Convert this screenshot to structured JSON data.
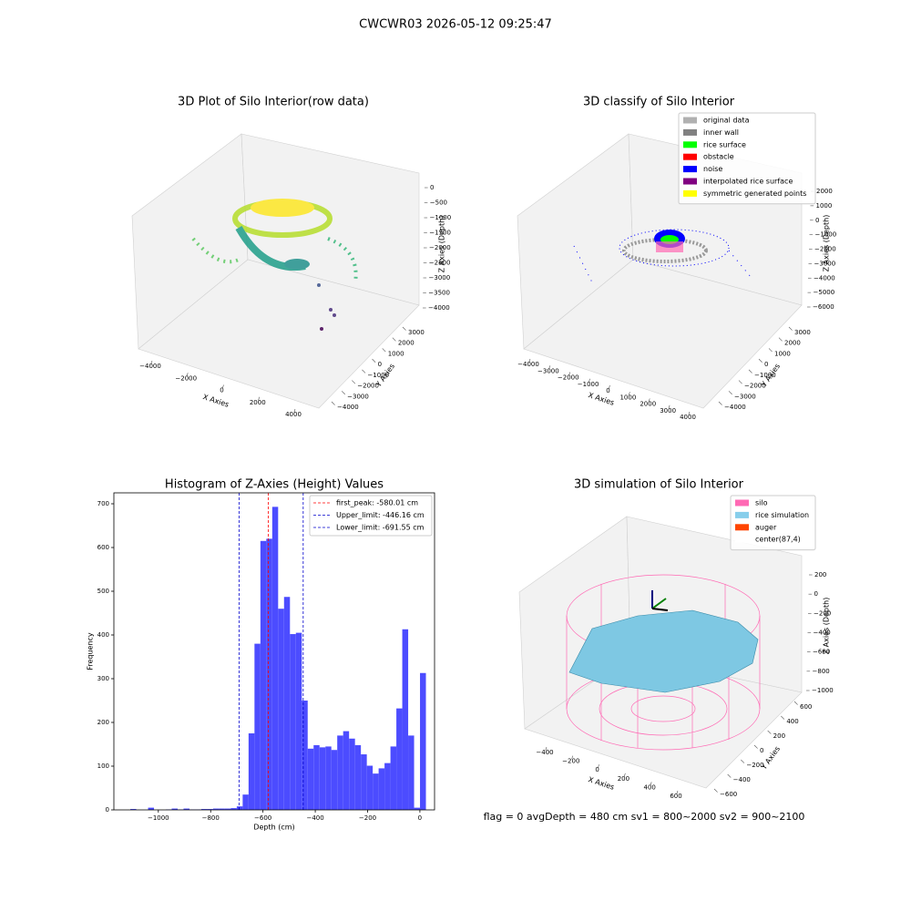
{
  "title": "CWCWR03 2026-05-12 09:25:47",
  "footer": "flag = 0     avgDepth = 480 cm  sv1 = 800~2000  sv2 = 900~2100",
  "chart_data": [
    {
      "type": "scatter3d",
      "title": "3D Plot of Silo Interior(row data)",
      "xlabel": "X Axies",
      "ylabel": "Y Axies",
      "zlabel": "Z Axies (Depth)",
      "xlim": [
        -4000,
        4000
      ],
      "xticks": [
        {
          "value": -4000,
          "label": "−4000"
        },
        {
          "value": -2000,
          "label": "−2000"
        },
        0,
        2000,
        4000
      ],
      "ylim": [
        -4000,
        3000
      ],
      "yticks": [
        {
          "value": -4000,
          "label": "−4000"
        },
        {
          "value": -3000,
          "label": "−3000"
        },
        {
          "value": -2000,
          "label": "−2000"
        },
        {
          "value": -1000,
          "label": "−1000"
        },
        0,
        1000,
        2000,
        3000
      ],
      "zlim": [
        0,
        -4000
      ],
      "zticks": [
        0,
        {
          "value": -500,
          "label": "−500"
        },
        {
          "value": -1000,
          "label": "−1000"
        },
        {
          "value": -1500,
          "label": "−1500"
        },
        {
          "value": -2000,
          "label": "−2000"
        },
        {
          "value": -2500,
          "label": "−2500"
        },
        {
          "value": -3000,
          "label": "−3000"
        },
        {
          "value": -3500,
          "label": "−3500"
        },
        {
          "value": -4000,
          "label": "−4000"
        }
      ]
    },
    {
      "type": "scatter3d",
      "title": "3D classify of Silo Interior",
      "xlabel": "X Axies",
      "ylabel": "Y Axies",
      "zlabel": "Z Axies (Depth)",
      "xlim": [
        -4000,
        4000
      ],
      "xticks": [
        {
          "value": -4000,
          "label": "−4000"
        },
        {
          "value": -3000,
          "label": "−3000"
        },
        {
          "value": -2000,
          "label": "−2000"
        },
        {
          "value": -1000,
          "label": "−1000"
        },
        0,
        1000,
        2000,
        3000,
        4000
      ],
      "ylim": [
        -4000,
        3000
      ],
      "yticks": [
        {
          "value": -4000,
          "label": "−4000"
        },
        {
          "value": -3000,
          "label": "−3000"
        },
        {
          "value": -2000,
          "label": "−2000"
        },
        {
          "value": -1000,
          "label": "−1000"
        },
        0,
        1000,
        2000,
        3000
      ],
      "zlim": [
        2000,
        -6000
      ],
      "zticks": [
        2000,
        1000,
        0,
        {
          "value": -1000,
          "label": "−1000"
        },
        {
          "value": -2000,
          "label": "−2000"
        },
        {
          "value": -3000,
          "label": "−3000"
        },
        {
          "value": -4000,
          "label": "−4000"
        },
        {
          "value": -5000,
          "label": "−5000"
        },
        {
          "value": -6000,
          "label": "−6000"
        }
      ],
      "legend": "upper right",
      "series": [
        {
          "name": "original data",
          "color": "#b0b0b0"
        },
        {
          "name": "inner wall",
          "color": "#808080"
        },
        {
          "name": "rice surface",
          "color": "#00ff00"
        },
        {
          "name": "obstacle",
          "color": "#ff0000"
        },
        {
          "name": "noise",
          "color": "#0000ff"
        },
        {
          "name": "interpolated rice surface",
          "color": "#800080"
        },
        {
          "name": "symmetric generated points",
          "color": "#ffff00"
        }
      ]
    },
    {
      "type": "histogram",
      "title": "Histogram of Z-Axies (Height) Values",
      "xlabel": "Depth (cm)",
      "ylabel": "Frequency",
      "color": "#4c4cff",
      "bins": [
        -1107,
        -1084.4,
        -1061.8,
        -1039.2,
        -1016.6,
        -994,
        -971.4,
        -948.8,
        -926.2,
        -903.6,
        -881,
        -858.4,
        -835.8,
        -813.2,
        -790.6,
        -768,
        -745.4,
        -722.8,
        -700.2,
        -677.6,
        -655,
        -632.4,
        -609.8,
        -587.2,
        -564.6,
        -542,
        -519.4,
        -496.8,
        -474.2,
        -451.6,
        -429,
        -406.4,
        -383.8,
        -361.2,
        -338.6,
        -316,
        -293.4,
        -270.8,
        -248.2,
        -225.6,
        -203,
        -180.4,
        -157.8,
        -135.2,
        -112.6,
        -90,
        -67.4,
        -44.8,
        -22.2,
        0.4,
        23
      ],
      "counts": [
        2,
        0,
        0,
        5,
        0,
        0,
        1,
        3,
        1,
        3,
        1,
        1,
        2,
        2,
        3,
        3,
        3,
        4,
        8,
        35,
        175,
        380,
        615,
        620,
        693,
        460,
        487,
        402,
        405,
        250,
        140,
        148,
        143,
        145,
        137,
        170,
        180,
        163,
        148,
        127,
        101,
        83,
        95,
        107,
        145,
        232,
        413,
        170,
        5,
        313
      ],
      "xlim": [
        -1170,
        56
      ],
      "xticks": [
        {
          "value": -1000,
          "label": "−1000"
        },
        {
          "value": -800,
          "label": "−800"
        },
        {
          "value": -600,
          "label": "−600"
        },
        {
          "value": -400,
          "label": "−400"
        },
        {
          "value": -200,
          "label": "−200"
        },
        0
      ],
      "ylim": [
        0,
        725
      ],
      "yticks": [
        0,
        100,
        200,
        300,
        400,
        500,
        600,
        700
      ],
      "legend": "upper right",
      "vlines": [
        {
          "name": "first_peak: -580.01 cm",
          "value": -580.01,
          "color": "#ff0000"
        },
        {
          "name": "Upper_limit: -446.16 cm",
          "value": -446.16,
          "color": "#0000cc"
        },
        {
          "name": "Lower_limit: -691.55 cm",
          "value": -691.55,
          "color": "#0000cc"
        }
      ]
    },
    {
      "type": "surface3d",
      "title": "3D simulation of Silo Interior",
      "xlabel": "X Axies",
      "ylabel": "Y Axies",
      "zlabel": "Z Axies (Depth)",
      "xlim": [
        -400,
        600
      ],
      "xticks": [
        {
          "value": -400,
          "label": "−400"
        },
        {
          "value": -200,
          "label": "−200"
        },
        0,
        200,
        400,
        600
      ],
      "ylim": [
        -600,
        600
      ],
      "yticks": [
        {
          "value": -600,
          "label": "−600"
        },
        {
          "value": -400,
          "label": "−400"
        },
        {
          "value": -200,
          "label": "−200"
        },
        0,
        200,
        400,
        600
      ],
      "zlim": [
        200,
        -1000
      ],
      "zticks": [
        200,
        0,
        {
          "value": -200,
          "label": "−200"
        },
        {
          "value": -400,
          "label": "−400"
        },
        {
          "value": -600,
          "label": "−600"
        },
        {
          "value": -800,
          "label": "−800"
        },
        {
          "value": -1000,
          "label": "−1000"
        }
      ],
      "legend": "upper right",
      "series": [
        {
          "name": "silo",
          "color": "#ff69b4"
        },
        {
          "name": "rice simulation",
          "color": "#87ceeb"
        },
        {
          "name": "auger",
          "color": "#ff4500"
        },
        {
          "name": "center(87,4)",
          "color": "#ffffff"
        }
      ]
    }
  ]
}
